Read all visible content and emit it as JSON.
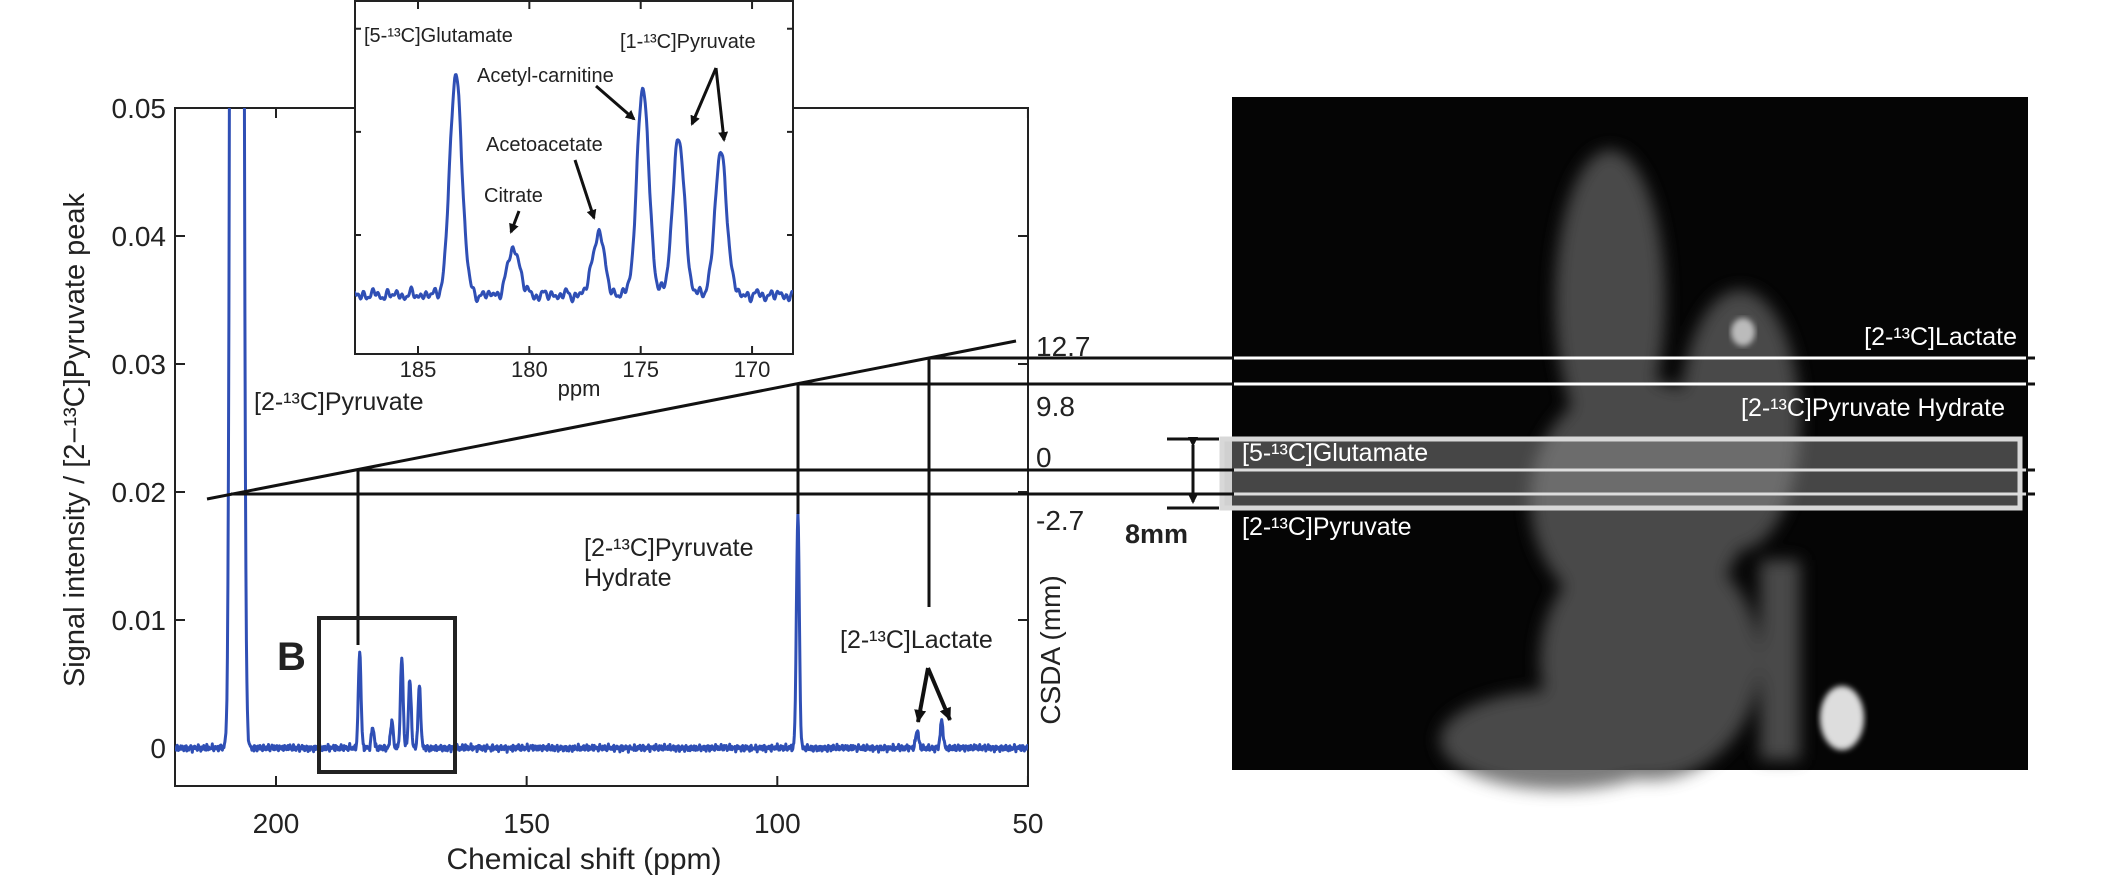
{
  "chart_data": {
    "type": "line",
    "title": "",
    "xlabel": "Chemical shift (ppm)",
    "ylabel": "Signal intensity / [2−¹³C]Pyruvate peak",
    "xlim": [
      220,
      50
    ],
    "ylim": [
      -0.003,
      0.05
    ],
    "xticks": [
      200,
      150,
      100,
      50
    ],
    "yticks": [
      0,
      0.01,
      0.02,
      0.03,
      0.04,
      0.05
    ],
    "ytick_labels": [
      "0",
      "0.01",
      "0.02",
      "0.03",
      "0.04",
      "0.05"
    ],
    "series_color": "#2f4fb5",
    "peaks": [
      {
        "name": "[2-13C]Pyruvate",
        "ppm": 207.8,
        "height": 1.0,
        "width": 0.87
      },
      {
        "name": "[5-13C]Glutamate",
        "ppm": 183.3,
        "height": 0.0075,
        "width": 0.38
      },
      {
        "name": "Citrate",
        "ppm": 180.7,
        "height": 0.0016,
        "width": 0.38
      },
      {
        "name": "Acetoacetate",
        "ppm": 176.9,
        "height": 0.0021,
        "width": 0.38
      },
      {
        "name": "Acetyl-carnitine",
        "ppm": 174.9,
        "height": 0.007,
        "width": 0.38
      },
      {
        "name": "[1-13C]Pyruvate a",
        "ppm": 173.3,
        "height": 0.0053,
        "width": 0.38
      },
      {
        "name": "[1-13C]Pyruvate b",
        "ppm": 171.4,
        "height": 0.0048,
        "width": 0.38
      },
      {
        "name": "[2-13C]Pyruvate Hydrate",
        "ppm": 95.9,
        "height": 0.0183,
        "width": 0.4
      },
      {
        "name": "[2-13C]Lactate a",
        "ppm": 72.1,
        "height": 0.0014,
        "width": 0.4
      },
      {
        "name": "[2-13C]Lactate b",
        "ppm": 67.2,
        "height": 0.0021,
        "width": 0.4
      }
    ],
    "annotations": {
      "pyruvate": "[2-¹³C]Pyruvate",
      "hydrate_line1": "[2-¹³C]Pyruvate",
      "hydrate_line2": "Hydrate",
      "lactate": "[2-¹³C]Lactate",
      "box_label": "B"
    },
    "csda": {
      "label": "CSDA (mm)",
      "levels": [
        "12.7",
        "9.8",
        "0",
        "-2.7"
      ]
    },
    "inset": {
      "xlabel": "ppm",
      "xlim": [
        187.8,
        168.2
      ],
      "xticks": [
        185,
        180,
        175,
        170
      ],
      "labels": {
        "glutamate": "[5-¹³C]Glutamate",
        "acetyl": "Acetyl-carnitine",
        "pyruvate1": "[1-¹³C]Pyruvate",
        "acetoacetate": "Acetoacetate",
        "citrate": "Citrate"
      }
    }
  },
  "image_panel": {
    "slices": {
      "lactate": "[2-¹³C]Lactate",
      "hydrate": "[2-¹³C]Pyruvate Hydrate",
      "glutamate": "[5-¹³C]Glutamate",
      "pyruvate": "[2-¹³C]Pyruvate"
    },
    "thickness": "8mm"
  }
}
